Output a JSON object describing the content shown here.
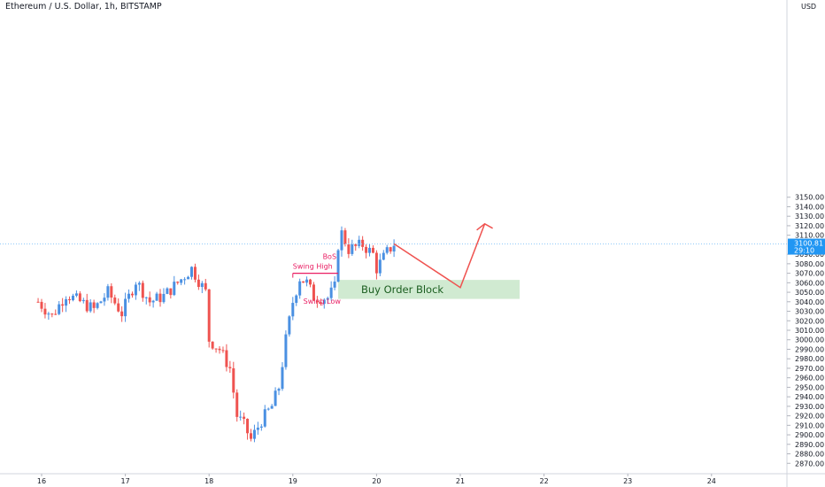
{
  "header": {
    "title": "Ethereum / U.S. Dollar, 1h, BITSTAMP"
  },
  "price_axis": {
    "currency": "USD",
    "labels": [
      "3150.00",
      "3140.00",
      "3130.00",
      "3120.00",
      "3110.00",
      "3090.00",
      "3080.00",
      "3070.00",
      "3060.00",
      "3050.00",
      "3040.00",
      "3030.00",
      "3020.00",
      "3010.00",
      "3000.00",
      "2990.00",
      "2980.00",
      "2970.00",
      "2960.00",
      "2950.00",
      "2940.00",
      "2930.00",
      "2920.00",
      "2910.00",
      "2900.00",
      "2890.00",
      "2880.00",
      "2870.00"
    ]
  },
  "current_price": {
    "price": "3100.81",
    "countdown": "29:10",
    "color": "#2196f3"
  },
  "time_axis": {
    "labels": [
      "16",
      "17",
      "18",
      "19",
      "20",
      "21",
      "22",
      "23",
      "24"
    ]
  },
  "annotations": {
    "bos": "BoS",
    "swing_high": "Swing High",
    "swing_low": "Swing Low",
    "order_block": "Buy Order Block"
  },
  "colors": {
    "up": "#4a90e2",
    "down": "#ef5350",
    "annotation": "#e91e63",
    "order_block_fill": "#c8e6c9",
    "arrow": "#ef5350"
  },
  "chart_data": {
    "type": "candlestick",
    "title": "Ethereum / U.S. Dollar, 1h, BITSTAMP",
    "ylim": [
      2860,
      3160
    ],
    "x_ticks": [
      "16",
      "17",
      "18",
      "19",
      "20",
      "21",
      "22",
      "23",
      "24"
    ],
    "current_price": 3100.81,
    "price_path": [
      [
        "15 23:00",
        3040
      ],
      [
        "16 03:00",
        3025
      ],
      [
        "16 07:00",
        3048
      ],
      [
        "16 11:00",
        3040
      ],
      [
        "16 15:00",
        3032
      ],
      [
        "16 19:00",
        3050
      ],
      [
        "16 23:00",
        3028
      ],
      [
        "17 03:00",
        3062
      ],
      [
        "17 07:00",
        3040
      ],
      [
        "17 11:00",
        3046
      ],
      [
        "17 15:00",
        3060
      ],
      [
        "17 19:00",
        3075
      ],
      [
        "17 23:00",
        3050
      ],
      [
        "18 00:00",
        3000
      ],
      [
        "18 03:00",
        2990
      ],
      [
        "18 06:00",
        2970
      ],
      [
        "18 08:00",
        2920
      ],
      [
        "18 10:00",
        2910
      ],
      [
        "18 12:00",
        2895
      ],
      [
        "18 15:00",
        2915
      ],
      [
        "18 18:00",
        2930
      ],
      [
        "18 20:00",
        2950
      ],
      [
        "18 22:00",
        3000
      ],
      [
        "19 00:00",
        3040
      ],
      [
        "19 02:00",
        3065
      ],
      [
        "19 04:00",
        3060
      ],
      [
        "19 06:00",
        3045
      ],
      [
        "19 10:00",
        3044
      ],
      [
        "19 12:00",
        3055
      ],
      [
        "19 13:00",
        3100
      ],
      [
        "19 14:00",
        3112
      ],
      [
        "19 16:00",
        3095
      ],
      [
        "19 20:00",
        3100
      ],
      [
        "19 23:00",
        3090
      ],
      [
        "20 00:00",
        3075
      ],
      [
        "20 03:00",
        3092
      ],
      [
        "20 05:00",
        3101
      ]
    ],
    "highlights": {
      "bos_level": 3070,
      "swing_low": 3035,
      "order_block": {
        "from": 3043,
        "to": 3063,
        "start": "19 13:00",
        "end": "21 17:00"
      },
      "projection": [
        [
          "20 05:00",
          3101
        ],
        [
          "21 00:00",
          3055
        ],
        [
          "21 07:00",
          3122
        ]
      ]
    }
  }
}
